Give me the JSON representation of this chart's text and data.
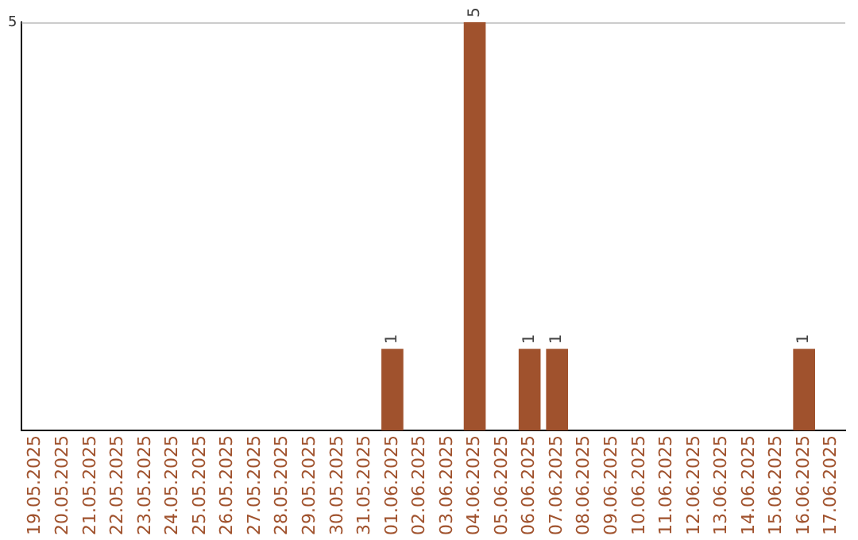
{
  "chart_data": {
    "type": "bar",
    "categories": [
      "19.05.2025",
      "20.05.2025",
      "21.05.2025",
      "22.05.2025",
      "23.05.2025",
      "24.05.2025",
      "25.05.2025",
      "26.05.2025",
      "27.05.2025",
      "28.05.2025",
      "29.05.2025",
      "30.05.2025",
      "31.05.2025",
      "01.06.2025",
      "02.06.2025",
      "03.06.2025",
      "04.06.2025",
      "05.06.2025",
      "06.06.2025",
      "07.06.2025",
      "08.06.2025",
      "09.06.2025",
      "10.06.2025",
      "11.06.2025",
      "12.06.2025",
      "13.06.2025",
      "14.06.2025",
      "15.06.2025",
      "16.06.2025",
      "17.06.2025"
    ],
    "values": [
      null,
      null,
      null,
      null,
      null,
      null,
      null,
      null,
      null,
      null,
      null,
      null,
      null,
      1,
      null,
      null,
      5,
      null,
      1,
      1,
      null,
      null,
      null,
      null,
      null,
      null,
      null,
      null,
      1,
      null
    ],
    "color": "#a0522d",
    "ylim": [
      0,
      5
    ],
    "yticks": [
      5
    ],
    "ref_lines": [
      {
        "axis": "y",
        "value": 5,
        "color": "#cccccc"
      }
    ],
    "data_labels": true,
    "legend": false
  }
}
